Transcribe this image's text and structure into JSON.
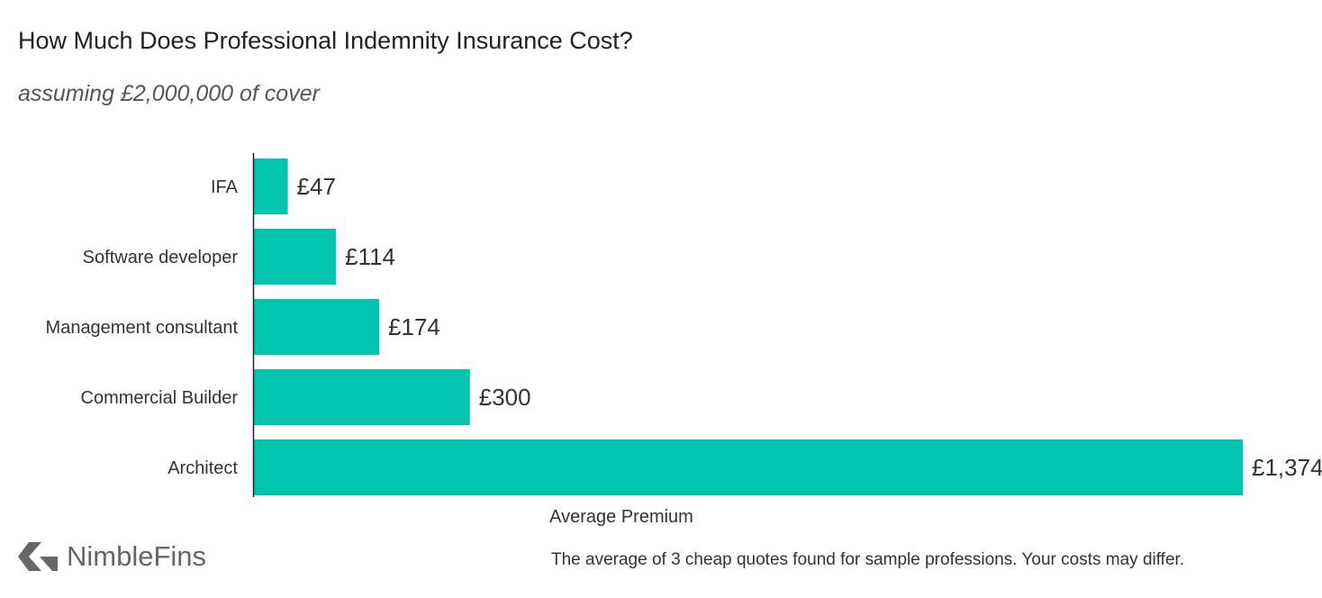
{
  "chart_data": {
    "type": "bar",
    "orientation": "horizontal",
    "title": "How Much Does Professional Indemnity Insurance Cost?",
    "subtitle": "assuming £2,000,000 of cover",
    "categories": [
      "IFA",
      "Software developer",
      "Management consultant",
      "Commercial Builder",
      "Architect"
    ],
    "values": [
      47,
      114,
      174,
      300,
      1374
    ],
    "value_labels": [
      "£47",
      "£114",
      "£174",
      "£300",
      "£1,374"
    ],
    "xlabel": "Average Premium",
    "ylabel": "",
    "xlim": [
      0,
      1374
    ],
    "grid": false,
    "bar_color": "#00c4ae"
  },
  "brand": {
    "name": "NimbleFins",
    "logo_icon": "nimblefins-chevron-logo-icon"
  },
  "footnote": "The average of 3 cheap quotes found for sample professions. Your costs may differ."
}
